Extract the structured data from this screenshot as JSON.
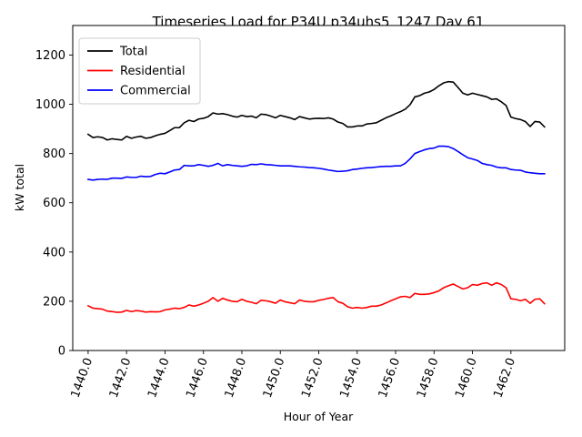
{
  "chart_data": {
    "type": "line",
    "title": "Timeseries Load for P34U p34uhs5_1247  Day 61",
    "xlabel": "Hour of Year",
    "ylabel": "kW total",
    "xlim": [
      1439.2,
      1464.8
    ],
    "ylim": [
      0,
      1320
    ],
    "xticks": [
      1440,
      1442,
      1444,
      1446,
      1448,
      1450,
      1452,
      1454,
      1456,
      1458,
      1460,
      1462
    ],
    "xtick_labels": [
      "1440.0",
      "1442.0",
      "1444.0",
      "1446.0",
      "1448.0",
      "1450.0",
      "1452.0",
      "1454.0",
      "1456.0",
      "1458.0",
      "1460.0",
      "1462.0"
    ],
    "yticks": [
      0,
      200,
      400,
      600,
      800,
      1000,
      1200
    ],
    "ytick_labels": [
      "0",
      "200",
      "400",
      "600",
      "800",
      "1000",
      "1200"
    ],
    "grid": false,
    "legend_position": "top-left",
    "x": [
      1440.0,
      1440.25,
      1440.5,
      1440.75,
      1441.0,
      1441.25,
      1441.5,
      1441.75,
      1442.0,
      1442.25,
      1442.5,
      1442.75,
      1443.0,
      1443.25,
      1443.5,
      1443.75,
      1444.0,
      1444.25,
      1444.5,
      1444.75,
      1445.0,
      1445.25,
      1445.5,
      1445.75,
      1446.0,
      1446.25,
      1446.5,
      1446.75,
      1447.0,
      1447.25,
      1447.5,
      1447.75,
      1448.0,
      1448.25,
      1448.5,
      1448.75,
      1449.0,
      1449.25,
      1449.5,
      1449.75,
      1450.0,
      1450.25,
      1450.5,
      1450.75,
      1451.0,
      1451.25,
      1451.5,
      1451.75,
      1452.0,
      1452.25,
      1452.5,
      1452.75,
      1453.0,
      1453.25,
      1453.5,
      1453.75,
      1454.0,
      1454.25,
      1454.5,
      1454.75,
      1455.0,
      1455.25,
      1455.5,
      1455.75,
      1456.0,
      1456.25,
      1456.5,
      1456.75,
      1457.0,
      1457.25,
      1457.5,
      1457.75,
      1458.0,
      1458.25,
      1458.5,
      1458.75,
      1459.0,
      1459.25,
      1459.5,
      1459.75,
      1460.0,
      1460.25,
      1460.5,
      1460.75,
      1461.0,
      1461.25,
      1461.5,
      1461.75,
      1462.0,
      1462.25,
      1462.5,
      1462.75,
      1463.0,
      1463.25,
      1463.5,
      1463.75
    ],
    "series": [
      {
        "name": "Total",
        "color": "#000000",
        "values": [
          878,
          865,
          868,
          865,
          855,
          860,
          857,
          855,
          870,
          862,
          867,
          870,
          862,
          865,
          872,
          878,
          882,
          893,
          905,
          905,
          925,
          935,
          930,
          940,
          943,
          950,
          965,
          960,
          962,
          958,
          952,
          948,
          955,
          950,
          952,
          945,
          960,
          958,
          952,
          945,
          955,
          950,
          945,
          938,
          950,
          945,
          940,
          942,
          943,
          942,
          945,
          940,
          928,
          922,
          908,
          908,
          912,
          912,
          920,
          922,
          925,
          935,
          945,
          953,
          962,
          970,
          980,
          998,
          1030,
          1035,
          1045,
          1050,
          1060,
          1075,
          1087,
          1092,
          1090,
          1068,
          1045,
          1038,
          1045,
          1040,
          1035,
          1030,
          1020,
          1022,
          1010,
          995,
          948,
          942,
          938,
          930,
          910,
          930,
          928,
          908
        ]
      },
      {
        "name": "Residential",
        "color": "#ff0000",
        "values": [
          182,
          172,
          170,
          168,
          160,
          158,
          155,
          156,
          163,
          158,
          162,
          160,
          156,
          158,
          157,
          158,
          165,
          168,
          172,
          170,
          175,
          185,
          180,
          185,
          192,
          200,
          215,
          200,
          212,
          205,
          200,
          198,
          208,
          200,
          196,
          190,
          204,
          202,
          198,
          192,
          205,
          198,
          194,
          190,
          205,
          200,
          198,
          198,
          204,
          207,
          212,
          215,
          198,
          192,
          178,
          172,
          175,
          172,
          175,
          180,
          180,
          185,
          193,
          202,
          210,
          218,
          220,
          215,
          232,
          228,
          228,
          230,
          235,
          242,
          255,
          263,
          270,
          260,
          250,
          255,
          268,
          265,
          272,
          275,
          265,
          275,
          268,
          255,
          210,
          208,
          202,
          208,
          192,
          208,
          210,
          190
        ]
      },
      {
        "name": "Commercial",
        "color": "#0000ff",
        "values": [
          695,
          692,
          695,
          696,
          695,
          700,
          700,
          699,
          705,
          703,
          703,
          708,
          706,
          707,
          715,
          720,
          718,
          725,
          733,
          735,
          752,
          750,
          750,
          755,
          752,
          748,
          752,
          760,
          750,
          755,
          752,
          750,
          748,
          750,
          756,
          755,
          758,
          755,
          754,
          752,
          750,
          750,
          750,
          748,
          746,
          745,
          743,
          742,
          740,
          737,
          733,
          730,
          727,
          728,
          730,
          735,
          737,
          740,
          742,
          743,
          745,
          747,
          748,
          748,
          750,
          750,
          760,
          778,
          800,
          808,
          815,
          820,
          822,
          830,
          830,
          828,
          820,
          808,
          795,
          783,
          778,
          772,
          760,
          755,
          752,
          745,
          742,
          742,
          735,
          733,
          732,
          725,
          722,
          720,
          718,
          718
        ]
      }
    ]
  }
}
